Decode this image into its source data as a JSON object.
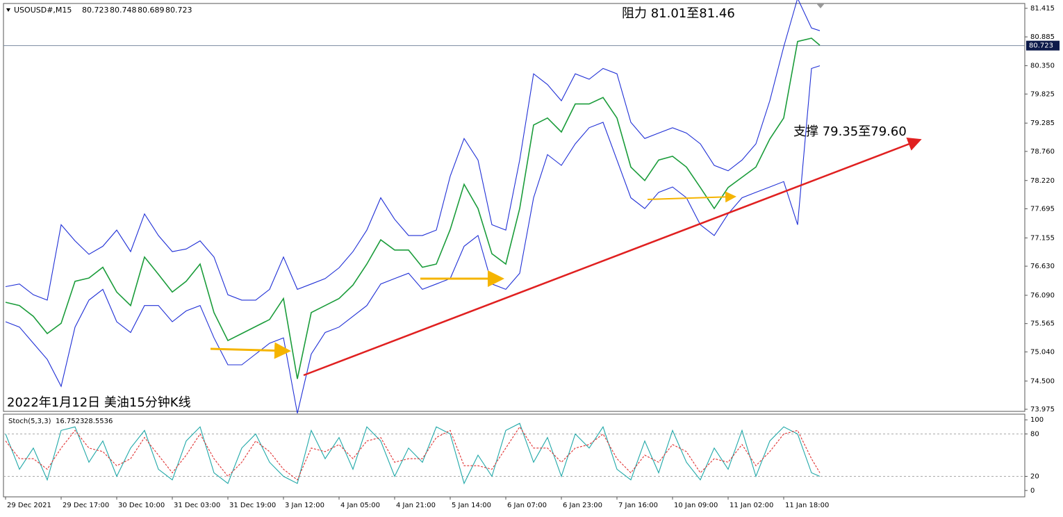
{
  "chart_data": [
    {
      "type": "line",
      "symbol": "USOUSD#,M15",
      "ohlc": [
        80.723,
        80.748,
        80.689,
        80.723
      ],
      "current_price": 80.723,
      "annotations": [
        "阻力 81.01至81.46",
        "支撑 79.35至79.60",
        "2022年1月12日 美油15分钟K线"
      ],
      "x": [
        0,
        0.25,
        0.5,
        0.75,
        1,
        1.25,
        1.5,
        1.75,
        2,
        2.25,
        2.5,
        2.75,
        3,
        3.25,
        3.5,
        3.75,
        4,
        4.25,
        4.5,
        4.75,
        5,
        5.25,
        5.5,
        5.75,
        6,
        6.25,
        6.5,
        6.75,
        7,
        7.25,
        7.5,
        7.75,
        8,
        8.25,
        8.5,
        8.75,
        9,
        9.25,
        9.5,
        9.75,
        10,
        10.25,
        10.5,
        10.75,
        11,
        11.25,
        11.5,
        11.75,
        12,
        12.25,
        12.5,
        12.75,
        13,
        13.25,
        13.5,
        13.75,
        14,
        14.25,
        14.5,
        14.65
      ],
      "series": [
        {
          "color": "#1a9c3a",
          "values": [
            75.96,
            75.9,
            75.7,
            75.38,
            75.57,
            76.35,
            76.41,
            76.61,
            76.15,
            75.9,
            76.8,
            76.48,
            76.15,
            76.35,
            76.67,
            75.77,
            75.25,
            75.38,
            75.51,
            75.64,
            76.03,
            74.54,
            75.77,
            75.9,
            76.03,
            76.28,
            76.67,
            77.12,
            76.93,
            76.93,
            76.61,
            76.67,
            77.31,
            78.15,
            77.7,
            76.86,
            76.67,
            77.7,
            79.25,
            79.38,
            79.12,
            79.64,
            79.64,
            79.76,
            79.38,
            78.47,
            78.22,
            78.6,
            78.67,
            78.47,
            78.09,
            77.7,
            78.09,
            78.28,
            78.47,
            78.99,
            79.38,
            80.8,
            80.86,
            80.73
          ]
        },
        {
          "color": "#1f2fd6",
          "values": [
            76.25,
            76.3,
            76.1,
            76.0,
            77.4,
            77.1,
            76.85,
            77.0,
            77.3,
            76.9,
            77.6,
            77.2,
            76.9,
            76.95,
            77.1,
            76.8,
            76.1,
            76.0,
            76.0,
            76.2,
            76.8,
            76.2,
            76.3,
            76.4,
            76.6,
            76.9,
            77.3,
            77.9,
            77.5,
            77.2,
            77.2,
            77.3,
            78.3,
            79.0,
            78.6,
            77.4,
            77.3,
            78.6,
            80.2,
            80.0,
            79.7,
            80.2,
            80.1,
            80.3,
            80.2,
            79.3,
            79.0,
            79.1,
            79.2,
            79.1,
            78.9,
            78.5,
            78.4,
            78.6,
            78.9,
            79.7,
            80.7,
            81.6,
            81.05,
            81.0
          ]
        },
        {
          "color": "#1f2fd6",
          "values": [
            75.6,
            75.5,
            75.2,
            74.9,
            74.4,
            75.5,
            76.0,
            76.2,
            75.6,
            75.4,
            75.9,
            75.9,
            75.6,
            75.8,
            75.9,
            75.3,
            74.8,
            74.8,
            75.0,
            75.2,
            75.3,
            73.9,
            75.0,
            75.4,
            75.5,
            75.7,
            75.9,
            76.3,
            76.4,
            76.5,
            76.2,
            76.3,
            76.4,
            77.0,
            77.2,
            76.3,
            76.2,
            76.5,
            77.9,
            78.7,
            78.5,
            78.9,
            79.2,
            79.3,
            78.6,
            77.9,
            77.7,
            78.0,
            78.1,
            77.9,
            77.4,
            77.2,
            77.6,
            77.9,
            78.0,
            78.1,
            78.2,
            77.4,
            80.3,
            80.35
          ]
        }
      ],
      "xlim": [
        -0.0375,
        18.3375
      ],
      "ylim": [
        73.936,
        81.505
      ],
      "yticks": [
        81.415,
        80.885,
        {
          "value": 80.35,
          "label": "80.350"
        },
        79.825,
        79.285,
        {
          "value": 78.76,
          "label": "78.760"
        },
        {
          "value": 78.22,
          "label": "78.220"
        },
        77.695,
        77.155,
        {
          "value": 76.63,
          "label": "76.630"
        },
        {
          "value": 76.09,
          "label": "76.090"
        },
        75.565,
        {
          "value": 75.04,
          "label": "75.040"
        },
        {
          "value": 74.5,
          "label": "74.500"
        },
        73.975
      ]
    },
    {
      "type": "line",
      "indicator": "Stoch(5,3,3)",
      "readout": [
        16.7523,
        28.5536
      ],
      "x": [
        0,
        0.25,
        0.5,
        0.75,
        1,
        1.25,
        1.5,
        1.75,
        2,
        2.25,
        2.5,
        2.75,
        3,
        3.25,
        3.5,
        3.75,
        4,
        4.25,
        4.5,
        4.75,
        5,
        5.25,
        5.5,
        5.75,
        6,
        6.25,
        6.5,
        6.75,
        7,
        7.25,
        7.5,
        7.75,
        8,
        8.25,
        8.5,
        8.75,
        9,
        9.25,
        9.5,
        9.75,
        10,
        10.25,
        10.5,
        10.75,
        11,
        11.25,
        11.5,
        11.75,
        12,
        12.25,
        12.5,
        12.75,
        13,
        13.25,
        13.5,
        13.75,
        14,
        14.25,
        14.5,
        14.65
      ],
      "series": [
        {
          "color": "#20a8a8",
          "values": [
            80,
            30,
            60,
            15,
            85,
            90,
            40,
            70,
            20,
            60,
            85,
            30,
            15,
            70,
            90,
            25,
            10,
            60,
            80,
            40,
            20,
            10,
            85,
            45,
            75,
            30,
            90,
            70,
            20,
            60,
            40,
            90,
            80,
            10,
            50,
            20,
            85,
            95,
            40,
            75,
            20,
            80,
            60,
            90,
            30,
            15,
            70,
            25,
            85,
            40,
            15,
            60,
            30,
            85,
            20,
            70,
            90,
            80,
            25,
            20
          ]
        },
        {
          "color": "#e03030",
          "dashed": true,
          "values": [
            70,
            45,
            45,
            30,
            60,
            85,
            60,
            55,
            35,
            45,
            75,
            50,
            25,
            50,
            80,
            45,
            20,
            40,
            70,
            55,
            30,
            15,
            60,
            55,
            65,
            45,
            70,
            75,
            40,
            45,
            45,
            75,
            85,
            35,
            35,
            30,
            60,
            90,
            60,
            60,
            40,
            60,
            65,
            80,
            45,
            25,
            50,
            40,
            65,
            55,
            25,
            45,
            40,
            65,
            35,
            55,
            80,
            85,
            45,
            25
          ]
        }
      ],
      "levels": [
        20,
        80
      ],
      "xlim": [
        -0.0375,
        18.3375
      ],
      "ylim": [
        -9,
        108
      ],
      "yticks": [
        100,
        80,
        20,
        0
      ],
      "xticks": [
        {
          "value": 0,
          "label": "29 Dec 2021"
        },
        {
          "value": 1,
          "label": "29 Dec 17:00"
        },
        {
          "value": 2,
          "label": "30 Dec 10:00"
        },
        {
          "value": 3,
          "label": "31 Dec 03:00"
        },
        {
          "value": 4,
          "label": "31 Dec 19:00"
        },
        {
          "value": 5,
          "label": "3 Jan 12:00"
        },
        {
          "value": 6,
          "label": "4 Jan 05:00"
        },
        {
          "value": 7,
          "label": "4 Jan 21:00"
        },
        {
          "value": 8,
          "label": "5 Jan 14:00"
        },
        {
          "value": 9,
          "label": "6 Jan 07:00"
        },
        {
          "value": 10,
          "label": "6 Jan 23:00"
        },
        {
          "value": 11,
          "label": "7 Jan 16:00"
        },
        {
          "value": 12,
          "label": "10 Jan 09:00"
        },
        {
          "value": 13,
          "label": "11 Jan 02:00"
        },
        {
          "value": 14,
          "label": "11 Jan 18:00"
        }
      ]
    }
  ]
}
